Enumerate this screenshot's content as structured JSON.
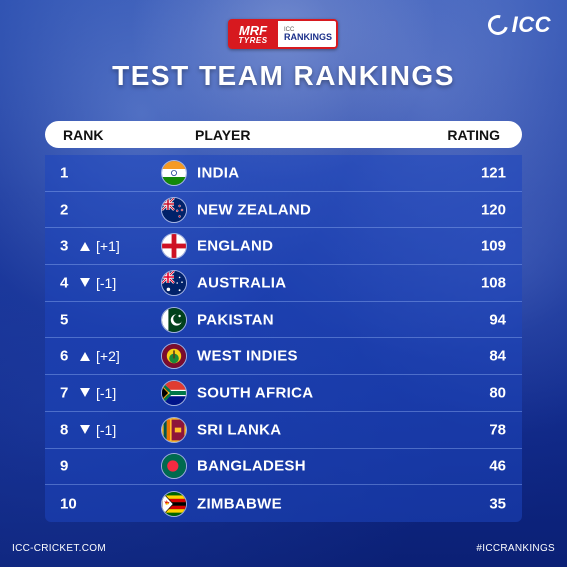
{
  "brand": {
    "icc_logo_text": "ICC",
    "sponsor_name": "MRF",
    "sponsor_sub": "TYRES",
    "rankings_small": "ICC",
    "rankings_label": "RANKINGS"
  },
  "title": "TEST TEAM RANKINGS",
  "columns": {
    "rank": "RANK",
    "player": "PLAYER",
    "rating": "RATING"
  },
  "rows": [
    {
      "rank": "1",
      "move": "",
      "direction": "none",
      "team": "INDIA",
      "rating": "121",
      "flag_icon": "india-flag-icon"
    },
    {
      "rank": "2",
      "move": "",
      "direction": "none",
      "team": "NEW ZEALAND",
      "rating": "120",
      "flag_icon": "new-zealand-flag-icon"
    },
    {
      "rank": "3",
      "move": "[+1]",
      "direction": "up",
      "team": "ENGLAND",
      "rating": "109",
      "flag_icon": "england-flag-icon"
    },
    {
      "rank": "4",
      "move": "[-1]",
      "direction": "down",
      "team": "AUSTRALIA",
      "rating": "108",
      "flag_icon": "australia-flag-icon"
    },
    {
      "rank": "5",
      "move": "",
      "direction": "none",
      "team": "PAKISTAN",
      "rating": "94",
      "flag_icon": "pakistan-flag-icon"
    },
    {
      "rank": "6",
      "move": "[+2]",
      "direction": "up",
      "team": "WEST INDIES",
      "rating": "84",
      "flag_icon": "west-indies-flag-icon"
    },
    {
      "rank": "7",
      "move": "[-1]",
      "direction": "down",
      "team": "SOUTH AFRICA",
      "rating": "80",
      "flag_icon": "south-africa-flag-icon"
    },
    {
      "rank": "8",
      "move": "[-1]",
      "direction": "down",
      "team": "SRI LANKA",
      "rating": "78",
      "flag_icon": "sri-lanka-flag-icon"
    },
    {
      "rank": "9",
      "move": "",
      "direction": "none",
      "team": "BANGLADESH",
      "rating": "46",
      "flag_icon": "bangladesh-flag-icon"
    },
    {
      "rank": "10",
      "move": "",
      "direction": "none",
      "team": "ZIMBABWE",
      "rating": "35",
      "flag_icon": "zimbabwe-flag-icon"
    }
  ],
  "footer": {
    "website": "ICC-CRICKET.COM",
    "hashtag": "#ICCRANKINGS"
  },
  "colors": {
    "background": "#10298a",
    "header_bar": "#ffffff",
    "sponsor_red": "#d7191f"
  }
}
